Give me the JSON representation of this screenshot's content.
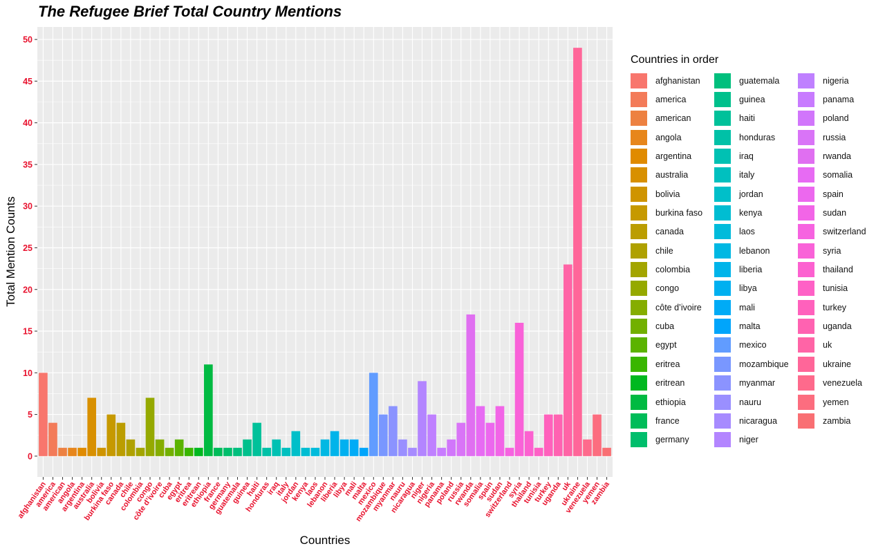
{
  "chart_data": {
    "type": "bar",
    "title": "The Refugee Brief Total Country Mentions",
    "xlabel": "Countries",
    "ylabel": "Total Mention Counts",
    "ylim": [
      -2.5,
      51.5
    ],
    "yticks": [
      0,
      5,
      10,
      15,
      20,
      25,
      30,
      35,
      40,
      45,
      50
    ],
    "ytick_labels": [
      "0",
      "5",
      "10",
      "15",
      "20",
      "25",
      "30",
      "35",
      "40",
      "45",
      "50"
    ],
    "grid": true,
    "legend_title": "Countries in order",
    "legend_position": "right",
    "categories": [
      "afghanistan",
      "america",
      "american",
      "angola",
      "argentina",
      "australia",
      "bolivia",
      "burkina faso",
      "canada",
      "chile",
      "colombia",
      "congo",
      "côte d’ivoire",
      "cuba",
      "egypt",
      "eritrea",
      "eritrean",
      "ethiopia",
      "france",
      "germany",
      "guatemala",
      "guinea",
      "haiti",
      "honduras",
      "iraq",
      "italy",
      "jordan",
      "kenya",
      "laos",
      "lebanon",
      "liberia",
      "libya",
      "mali",
      "malta",
      "mexico",
      "mozambique",
      "myanmar",
      "nauru",
      "nicaragua",
      "niger",
      "nigeria",
      "panama",
      "poland",
      "russia",
      "rwanda",
      "somalia",
      "spain",
      "sudan",
      "switzerland",
      "syria",
      "thailand",
      "tunisia",
      "turkey",
      "uganda",
      "uk",
      "ukraine",
      "venezuela",
      "yemen",
      "zambia"
    ],
    "values": [
      10,
      4,
      1,
      1,
      1,
      7,
      1,
      5,
      4,
      2,
      1,
      7,
      2,
      1,
      2,
      1,
      1,
      11,
      1,
      1,
      1,
      2,
      4,
      1,
      2,
      1,
      3,
      1,
      1,
      2,
      3,
      2,
      2,
      1,
      10,
      5,
      6,
      2,
      1,
      9,
      5,
      1,
      2,
      4,
      17,
      6,
      4,
      6,
      1,
      16,
      3,
      1,
      5,
      5,
      23,
      49,
      2,
      5,
      1
    ],
    "colors": [
      "#F8766D",
      "#F37B59",
      "#ED8141",
      "#E7861B",
      "#E08B00",
      "#D89000",
      "#CF9400",
      "#C69900",
      "#BB9D00",
      "#AFA100",
      "#A3A500",
      "#95A900",
      "#85AD00",
      "#72B000",
      "#5BB300",
      "#39B600",
      "#00B81F",
      "#00BA42",
      "#00BC59",
      "#00BE6C",
      "#00BF7D",
      "#00C08C",
      "#00C19A",
      "#00C1A7",
      "#00C1B3",
      "#00C0BF",
      "#00BFC9",
      "#00BDD2",
      "#00BBDB",
      "#00B8E3",
      "#00B4EA",
      "#00B0F0",
      "#00ABF6",
      "#00A5FB",
      "#619CFF",
      "#7997FF",
      "#8B93FF",
      "#9A8FFF",
      "#A78BFF",
      "#B385FF",
      "#BF80FF",
      "#C87BFF",
      "#D176FB",
      "#D974F7",
      "#E06FF1",
      "#E76BF3",
      "#EC68EE",
      "#F265E7",
      "#F663E0",
      "#F962D8",
      "#FC61D0",
      "#FE61C6",
      "#FF61BC",
      "#FF62B1",
      "#FF64A6",
      "#FF6699",
      "#FE6A8C",
      "#FC6D7F",
      "#F96F73"
    ]
  },
  "axis_colors": {
    "tick_labels": "#E8112D",
    "panel": "#EBEBEB",
    "grid": "#FFFFFF"
  }
}
